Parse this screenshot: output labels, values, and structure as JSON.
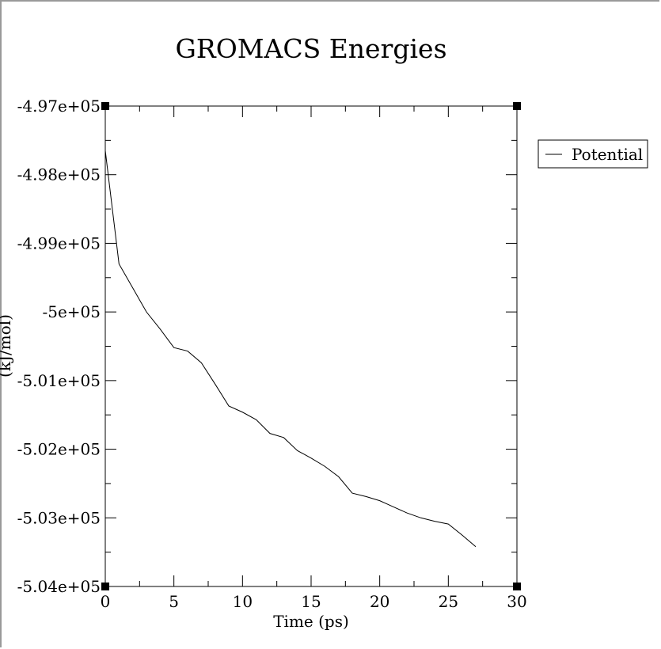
{
  "chart_data": {
    "type": "line",
    "title": "GROMACS Energies",
    "xlabel": "Time (ps)",
    "ylabel": "(kJ/mol)",
    "xlim": [
      0,
      30
    ],
    "ylim": [
      -504000,
      -497000
    ],
    "x_ticks": [
      0,
      5,
      10,
      15,
      20,
      25,
      30
    ],
    "x_tick_labels": [
      "0",
      "5",
      "10",
      "15",
      "20",
      "25",
      "30"
    ],
    "y_ticks": [
      -497000,
      -498000,
      -499000,
      -500000,
      -501000,
      -502000,
      -503000,
      -504000
    ],
    "y_tick_labels": [
      "-4.97e+05",
      "-4.98e+05",
      "-4.99e+05",
      "-5e+05",
      "-5.01e+05",
      "-5.02e+05",
      "-5.03e+05",
      "-5.04e+05"
    ],
    "grid": false,
    "legend_position": "right",
    "series": [
      {
        "name": "Potential",
        "color": "#000000",
        "x": [
          0,
          1,
          2,
          3,
          4,
          5,
          6,
          7,
          8,
          9,
          10,
          11,
          12,
          13,
          14,
          15,
          16,
          17,
          18,
          19,
          20,
          21,
          22,
          23,
          24,
          25,
          26,
          27
        ],
        "y": [
          -497650,
          -499300,
          -499650,
          -500000,
          -500250,
          -500520,
          -500570,
          -500740,
          -501050,
          -501370,
          -501460,
          -501570,
          -501770,
          -501830,
          -502020,
          -502130,
          -502250,
          -502400,
          -502640,
          -502690,
          -502750,
          -502840,
          -502930,
          -503000,
          -503050,
          -503090,
          -503250,
          -503420
        ]
      }
    ]
  }
}
